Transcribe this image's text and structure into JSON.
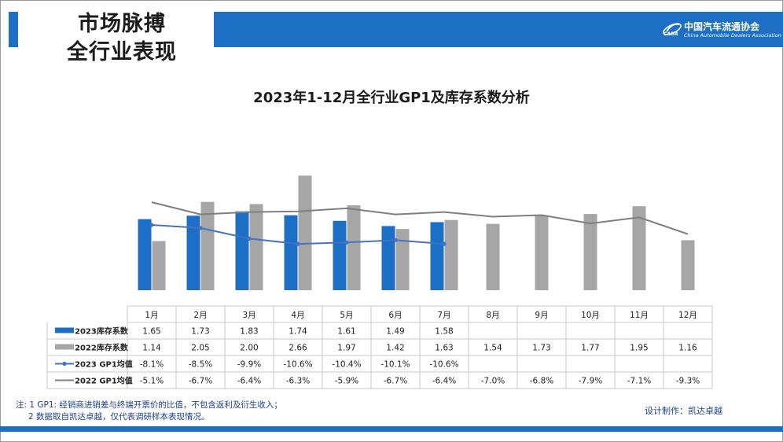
{
  "header": {
    "title_line1": "市场脉搏",
    "title_line2": "全行业表现",
    "logo_cn": "中国汽车流通协会",
    "logo_en": "China Automobile Dealers Association",
    "logo_mark_text": "CADA"
  },
  "colors": {
    "brand_blue": "#1c6fc4",
    "gray_bar": "#a6a6a6",
    "gp1_2023_line": "#4472c4",
    "gp1_2022_line": "#7f7f7f"
  },
  "chart_data": {
    "type": "bar",
    "title": "2023年1-12月全行业GP1及库存系数分析",
    "categories": [
      "1月",
      "2月",
      "3月",
      "4月",
      "5月",
      "6月",
      "7月",
      "8月",
      "9月",
      "10月",
      "11月",
      "12月"
    ],
    "series": [
      {
        "name": "2023库存系数",
        "kind": "bar",
        "values": [
          1.65,
          1.73,
          1.83,
          1.74,
          1.61,
          1.49,
          1.58,
          null,
          null,
          null,
          null,
          null
        ],
        "labels": [
          "1.65",
          "1.73",
          "1.83",
          "1.74",
          "1.61",
          "1.49",
          "1.58",
          "",
          "",
          "",
          "",
          ""
        ]
      },
      {
        "name": "2022库存系数",
        "kind": "bar",
        "values": [
          1.14,
          2.05,
          2.0,
          2.66,
          1.97,
          1.42,
          1.63,
          1.54,
          1.73,
          1.77,
          1.95,
          1.16
        ],
        "labels": [
          "1.14",
          "2.05",
          "2.00",
          "2.66",
          "1.97",
          "1.42",
          "1.63",
          "1.54",
          "1.73",
          "1.77",
          "1.95",
          "1.16"
        ]
      },
      {
        "name": "2023 GP1均值",
        "kind": "line",
        "values": [
          -8.1,
          -8.5,
          -9.9,
          -10.6,
          -10.4,
          -10.1,
          -10.6,
          null,
          null,
          null,
          null,
          null
        ],
        "labels": [
          "-8.1%",
          "-8.5%",
          "-9.9%",
          "-10.6%",
          "-10.4%",
          "-10.1%",
          "-10.6%",
          "",
          "",
          "",
          "",
          ""
        ]
      },
      {
        "name": "2022 GP1均值",
        "kind": "line",
        "values": [
          -5.1,
          -6.7,
          -6.4,
          -6.3,
          -5.9,
          -6.7,
          -6.4,
          -7.0,
          -6.8,
          -7.9,
          -7.1,
          -9.3
        ],
        "labels": [
          "-5.1%",
          "-6.7%",
          "-6.4%",
          "-6.3%",
          "-5.9%",
          "-6.7%",
          "-6.4%",
          "-7.0%",
          "-6.8%",
          "-7.9%",
          "-7.1%",
          "-9.3%"
        ]
      }
    ],
    "bar_axis_range": [
      0,
      2.72
    ],
    "line_axis_range": [
      -22,
      0
    ],
    "legend": "data-table",
    "grid": false
  },
  "notes": {
    "line1": "注: 1  GP1: 经销商进销差与终端开票价的比值，不包含返利及衍生收入；",
    "line2": "2 数据取自凯达卓越，仅代表调研样本表现情况。",
    "credit": "设计制作：凯达卓越"
  }
}
